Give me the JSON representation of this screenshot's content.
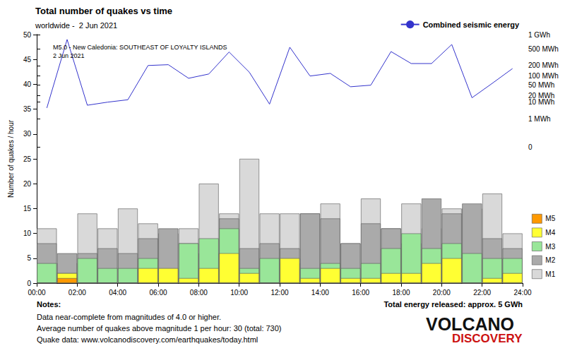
{
  "chart_data": {
    "type": "bar",
    "title": "Total number of quakes vs time",
    "subtitle": "worldwide -  2 Jun 2021",
    "ylabel": "Number of quakes / hour",
    "annotation": [
      "M5.0 - New Caledonia: SOUTHEAST OF LOYALTY ISLANDS",
      "2 Jun 2021"
    ],
    "notes_title": "Notes:",
    "notes": [
      "Data near-complete from magnitudes of 4.0 or higher.",
      "Average number of quakes above magnitude 1 per hour: 30 (total: 730)",
      "Quake data: www.volcanodiscovery.com/earthquakes/today.html"
    ],
    "energy_total": "Total energy released: approx. 5 GWh",
    "logo": [
      "VOLCANO",
      "DISCOVERY"
    ],
    "stacked": true,
    "grid": false,
    "legend": "right",
    "x": [
      0.5,
      1.5,
      2.5,
      3.5,
      4.5,
      5.5,
      6.5,
      7.5,
      8.5,
      9.5,
      10.5,
      11.5,
      12.5,
      13.5,
      14.5,
      15.5,
      16.5,
      17.5,
      18.5,
      19.5,
      20.5,
      21.5,
      22.5,
      23.5
    ],
    "xlim": [
      0,
      24
    ],
    "xticks": [
      {
        "value": 0,
        "label": "00:00"
      },
      {
        "value": 2,
        "label": "02:00"
      },
      {
        "value": 4,
        "label": "04:00"
      },
      {
        "value": 6,
        "label": "06:00"
      },
      {
        "value": 8,
        "label": "08:00"
      },
      {
        "value": 10,
        "label": "10:00"
      },
      {
        "value": 12,
        "label": "12:00"
      },
      {
        "value": 14,
        "label": "14:00"
      },
      {
        "value": 16,
        "label": "16:00"
      },
      {
        "value": 18,
        "label": "18:00"
      },
      {
        "value": 20,
        "label": "20:00"
      },
      {
        "value": 22,
        "label": "22:00"
      },
      {
        "value": 24,
        "label": "24:00"
      }
    ],
    "ylim": [
      0,
      50
    ],
    "yticks": [
      0,
      5,
      10,
      15,
      20,
      25,
      30,
      35,
      40,
      45,
      50
    ],
    "y2lim": [
      0,
      1000
    ],
    "y2ticks": [
      0,
      {
        "value": 1,
        "label": "1 MWh"
      },
      {
        "value": 10,
        "label": "10 MWh"
      },
      {
        "value": 20,
        "label": "20 MWh"
      },
      {
        "value": 50,
        "label": "50 MWh"
      },
      {
        "value": 100,
        "label": "100 MWh"
      },
      {
        "value": 200,
        "label": "200 MWh"
      },
      {
        "value": 500,
        "label": "500 MWh"
      },
      {
        "value": 1000,
        "label": "1 GWh"
      }
    ],
    "series": [
      {
        "name": "M1",
        "type": "bar",
        "color": "#d9d9d9",
        "values": [
          11,
          4,
          14,
          11,
          15,
          12,
          10,
          11,
          20,
          14,
          25,
          14,
          14,
          14,
          16,
          8,
          17,
          11,
          16,
          11,
          15,
          15,
          18,
          10
        ]
      },
      {
        "name": "M2",
        "type": "bar",
        "color": "#aaaaaa",
        "values": [
          8,
          6,
          6,
          7,
          6,
          9,
          11,
          8,
          6,
          13,
          7,
          8,
          7,
          14,
          13,
          8,
          12,
          11,
          8,
          17,
          14,
          16,
          9,
          7
        ]
      },
      {
        "name": "M3",
        "type": "bar",
        "color": "#99e699",
        "values": [
          4,
          2,
          5,
          3,
          3,
          5,
          1,
          8,
          9,
          11,
          3,
          5,
          4,
          3,
          4,
          3,
          4,
          7,
          10,
          7,
          8,
          6,
          5,
          5
        ]
      },
      {
        "name": "M4",
        "type": "bar",
        "color": "#ffff33",
        "values": [
          0,
          2,
          0,
          0,
          0,
          3,
          3,
          1,
          3,
          6,
          2,
          0,
          5,
          1,
          3,
          1,
          1,
          2,
          2,
          4,
          5,
          0,
          1,
          2
        ]
      },
      {
        "name": "M5",
        "type": "bar",
        "color": "#ff9900",
        "values": [
          0,
          1,
          0,
          0,
          0,
          0,
          0,
          0,
          0,
          0,
          0,
          0,
          0,
          0,
          0,
          0,
          0,
          0,
          0,
          0,
          0,
          0,
          0,
          0
        ]
      },
      {
        "name": "Combined seismic energy",
        "type": "line",
        "axis": "y2",
        "color": "#3333cc",
        "line_style": "solid",
        "values": [
          5,
          800,
          7,
          10,
          13,
          200,
          210,
          85,
          115,
          430,
          130,
          8,
          550,
          100,
          120,
          44,
          50,
          440,
          225,
          225,
          630,
          16,
          58,
          165
        ]
      }
    ]
  }
}
